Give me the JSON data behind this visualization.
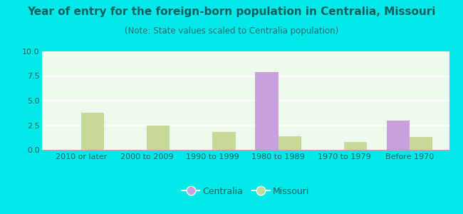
{
  "title": "Year of entry for the foreign-born population in Centralia, Missouri",
  "subtitle": "(Note: State values scaled to Centralia population)",
  "categories": [
    "2010 or later",
    "2000 to 2009",
    "1990 to 1999",
    "1980 to 1989",
    "1970 to 1979",
    "Before 1970"
  ],
  "centralia_values": [
    0,
    0,
    0,
    7.9,
    0,
    3.0
  ],
  "missouri_values": [
    3.8,
    2.5,
    1.8,
    1.4,
    0.8,
    1.3
  ],
  "centralia_color": "#c9a0dc",
  "missouri_color": "#c8d898",
  "background_outer": "#00e8e8",
  "background_inner": "#edfaed",
  "title_color": "#006060",
  "subtitle_color": "#007070",
  "tick_color": "#006060",
  "ylim": [
    0,
    10
  ],
  "yticks": [
    0,
    2.5,
    5,
    7.5,
    10
  ],
  "bar_width": 0.35,
  "legend_labels": [
    "Centralia",
    "Missouri"
  ],
  "title_fontsize": 11,
  "subtitle_fontsize": 8.5,
  "tick_fontsize": 8,
  "legend_fontsize": 9
}
